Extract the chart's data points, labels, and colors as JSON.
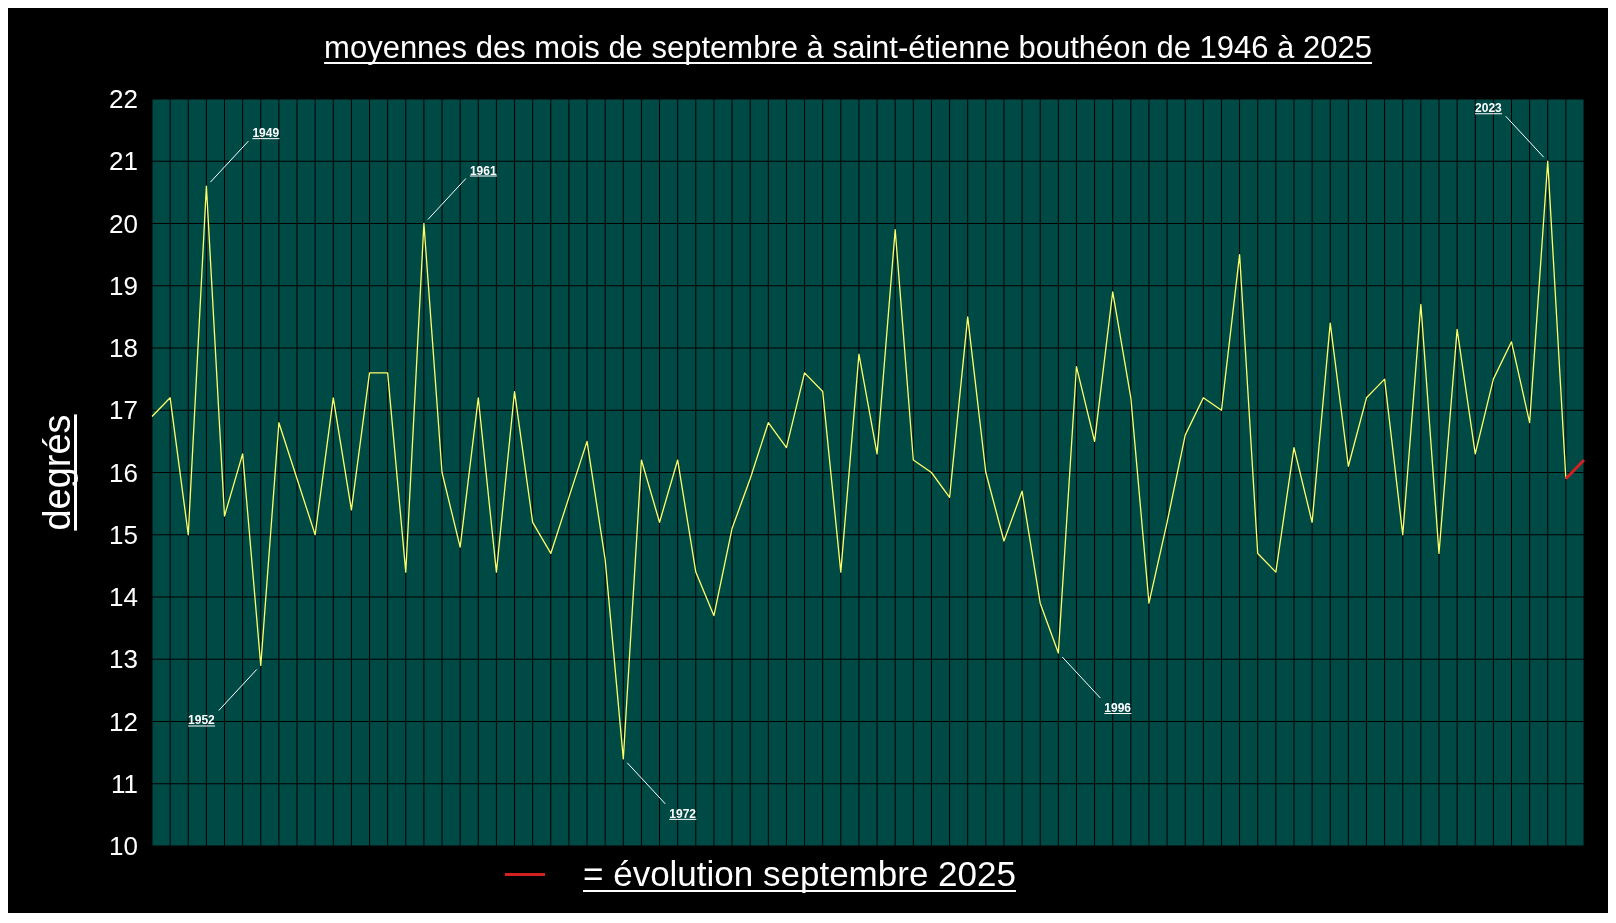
{
  "chart_data": {
    "type": "line",
    "title": "moyennes des mois de septembre à saint-étienne bouthéon de 1946 à 2025",
    "ylabel": "degrés",
    "categories": [
      null,
      null,
      null,
      null,
      null,
      null,
      null,
      null,
      null,
      null,
      null,
      null,
      null,
      null,
      null,
      null,
      null,
      null,
      null,
      null,
      null,
      null,
      null,
      null,
      null,
      null,
      null,
      null,
      null,
      null,
      null,
      null,
      null,
      null,
      null,
      null,
      null,
      null,
      null,
      null,
      null,
      null,
      null,
      null,
      null,
      null,
      null,
      null,
      null,
      null,
      null,
      null,
      null,
      null,
      null,
      null,
      null,
      null,
      null,
      null,
      null,
      null,
      null,
      null,
      null,
      null,
      null,
      null,
      null,
      null,
      null,
      null,
      null,
      null,
      null,
      null,
      null,
      null,
      null,
      null
    ],
    "series": [
      {
        "color": "#ffff66",
        "values": [
          16.9,
          17.2,
          15.0,
          20.6,
          15.3,
          16.3,
          12.9,
          16.8,
          15.9,
          15.0,
          17.2,
          15.4,
          17.6,
          17.6,
          14.4,
          20.0,
          16.0,
          14.8,
          17.2,
          14.4,
          17.3,
          15.2,
          14.7,
          15.6,
          16.5,
          14.6,
          11.4,
          16.2,
          15.2,
          16.2,
          14.4,
          13.7,
          15.1,
          15.9,
          16.8,
          16.4,
          17.6,
          17.3,
          14.4,
          17.9,
          16.3,
          19.9,
          16.2,
          16.0,
          15.6,
          18.5,
          16.0,
          14.9,
          15.7,
          13.9,
          13.1,
          17.7,
          16.5,
          18.9,
          17.2,
          13.9,
          15.2,
          16.6,
          17.2,
          17.0,
          19.5,
          14.7,
          14.4,
          16.4,
          15.2,
          18.4,
          16.1,
          17.2,
          17.5,
          15.0,
          18.7,
          14.7,
          18.3,
          16.3,
          17.5,
          18.1,
          16.8,
          21.0,
          15.9,
          null
        ]
      },
      {
        "name": "= évolution septembre 2025",
        "color": "#d42020",
        "values": [
          null,
          null,
          null,
          null,
          null,
          null,
          null,
          null,
          null,
          null,
          null,
          null,
          null,
          null,
          null,
          null,
          null,
          null,
          null,
          null,
          null,
          null,
          null,
          null,
          null,
          null,
          null,
          null,
          null,
          null,
          null,
          null,
          null,
          null,
          null,
          null,
          null,
          null,
          null,
          null,
          null,
          null,
          null,
          null,
          null,
          null,
          null,
          null,
          null,
          null,
          null,
          null,
          null,
          null,
          null,
          null,
          null,
          null,
          null,
          null,
          null,
          null,
          null,
          null,
          null,
          null,
          null,
          null,
          null,
          null,
          null,
          null,
          null,
          null,
          null,
          null,
          null,
          null,
          15.9,
          16.2
        ]
      }
    ],
    "ylim": [
      10,
      22
    ],
    "yticks": [
      10,
      11,
      12,
      13,
      14,
      15,
      16,
      17,
      18,
      19,
      20,
      21,
      22
    ],
    "grid": true,
    "legend": "bottom",
    "annotations": [
      "1949",
      "1952",
      "1961",
      "1972",
      "1996",
      "2023"
    ]
  }
}
